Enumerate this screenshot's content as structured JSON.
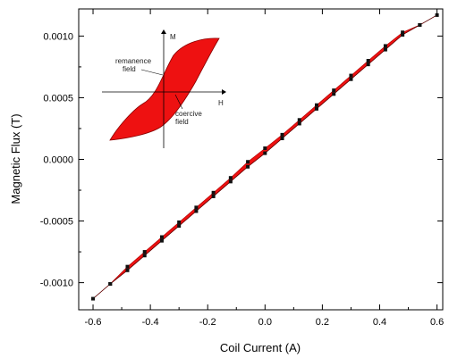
{
  "chart_data": {
    "type": "scatter",
    "xlabel": "Coil Current (A)",
    "ylabel": "Magnetic Flux (T)",
    "xlim": [
      -0.65,
      0.62
    ],
    "ylim": [
      -0.00122,
      0.00122
    ],
    "x_ticks": [
      -0.6,
      -0.4,
      -0.2,
      0.0,
      0.2,
      0.4,
      0.6
    ],
    "x_tick_labels": [
      "-0.6",
      "-0.4",
      "-0.2",
      "0.0",
      "0.2",
      "0.4",
      "0.6"
    ],
    "y_ticks": [
      -0.001,
      -0.0005,
      0.0,
      0.0005,
      0.001
    ],
    "y_tick_labels": [
      "-0.0010",
      "-0.0005",
      "0.0000",
      "0.0005",
      "0.0010"
    ],
    "grid": false,
    "band_color": "#ee1111",
    "marker_color": "#111111",
    "series": [
      {
        "points": [
          [
            -0.6,
            -0.00113
          ],
          [
            -0.54,
            -0.00101
          ],
          [
            -0.48,
            -0.0009
          ],
          [
            -0.42,
            -0.00078
          ],
          [
            -0.36,
            -0.00066
          ],
          [
            -0.3,
            -0.00054
          ],
          [
            -0.24,
            -0.00042
          ],
          [
            -0.18,
            -0.0003
          ],
          [
            -0.12,
            -0.00018
          ],
          [
            -0.06,
            -6e-05
          ],
          [
            0.0,
            5e-05
          ],
          [
            0.06,
            0.00017
          ],
          [
            0.12,
            0.00029
          ],
          [
            0.18,
            0.00041
          ],
          [
            0.24,
            0.00053
          ],
          [
            0.3,
            0.00065
          ],
          [
            0.36,
            0.00077
          ],
          [
            0.42,
            0.00089
          ],
          [
            0.48,
            0.00101
          ],
          [
            0.54,
            0.00109
          ],
          [
            0.6,
            0.00117
          ]
        ]
      },
      {
        "points": [
          [
            -0.54,
            -0.00101
          ],
          [
            -0.48,
            -0.00087
          ],
          [
            -0.42,
            -0.00075
          ],
          [
            -0.36,
            -0.00063
          ],
          [
            -0.3,
            -0.00051
          ],
          [
            -0.24,
            -0.00039
          ],
          [
            -0.18,
            -0.00027
          ],
          [
            -0.12,
            -0.00015
          ],
          [
            -0.06,
            -2e-05
          ],
          [
            0.0,
            9e-05
          ],
          [
            0.06,
            0.0002
          ],
          [
            0.12,
            0.00032
          ],
          [
            0.18,
            0.00044
          ],
          [
            0.24,
            0.00056
          ],
          [
            0.3,
            0.00068
          ],
          [
            0.36,
            0.0008
          ],
          [
            0.42,
            0.00092
          ],
          [
            0.48,
            0.00103
          ],
          [
            0.54,
            0.00109
          ]
        ]
      }
    ],
    "inset": {
      "axis_h": "H",
      "axis_m": "M",
      "label_remanence_1": "remanence",
      "label_remanence_2": "field",
      "label_coercive_1": "coercive",
      "label_coercive_2": "field"
    }
  }
}
